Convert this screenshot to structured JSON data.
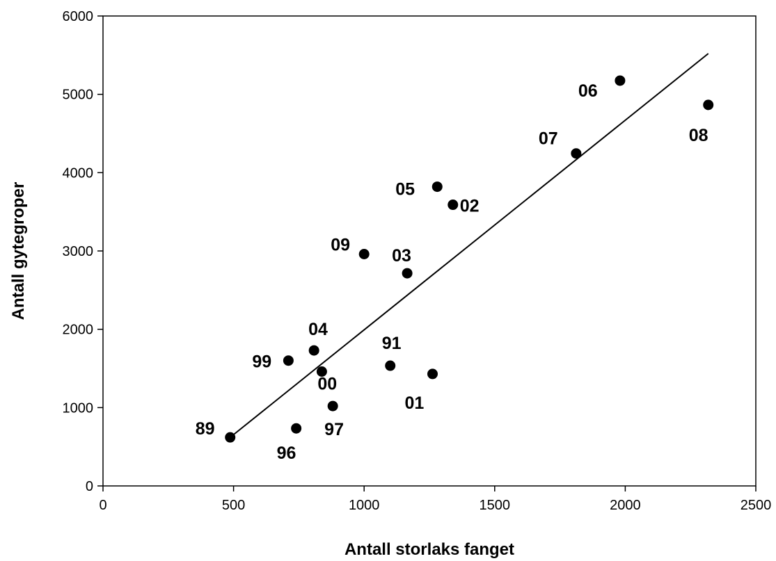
{
  "chart_data": {
    "type": "scatter",
    "title": "",
    "xlabel": "Antall storlaks fanget",
    "ylabel": "Antall gytegroper",
    "xlim": [
      0,
      2500
    ],
    "ylim": [
      0,
      6000
    ],
    "xticks": [
      "0",
      "500",
      "1000",
      "1500",
      "2000",
      "2500"
    ],
    "yticks": [
      "0",
      "1000",
      "2000",
      "3000",
      "4000",
      "5000",
      "6000"
    ],
    "grid": false,
    "points": [
      {
        "label": "89",
        "x": 487,
        "y": 620
      },
      {
        "label": "96",
        "x": 740,
        "y": 735
      },
      {
        "label": "97",
        "x": 880,
        "y": 1020
      },
      {
        "label": "99",
        "x": 710,
        "y": 1600
      },
      {
        "label": "04",
        "x": 808,
        "y": 1730
      },
      {
        "label": "00",
        "x": 838,
        "y": 1460
      },
      {
        "label": "91",
        "x": 1100,
        "y": 1535
      },
      {
        "label": "01",
        "x": 1262,
        "y": 1430
      },
      {
        "label": "09",
        "x": 1000,
        "y": 2960
      },
      {
        "label": "03",
        "x": 1165,
        "y": 2715
      },
      {
        "label": "05",
        "x": 1280,
        "y": 3820
      },
      {
        "label": "02",
        "x": 1340,
        "y": 3590
      },
      {
        "label": "07",
        "x": 1812,
        "y": 4245
      },
      {
        "label": "06",
        "x": 1980,
        "y": 5175
      },
      {
        "label": "08",
        "x": 2318,
        "y": 4865
      }
    ],
    "trendline": {
      "x": [
        487,
        2318
      ],
      "y": [
        620,
        5520
      ]
    }
  }
}
